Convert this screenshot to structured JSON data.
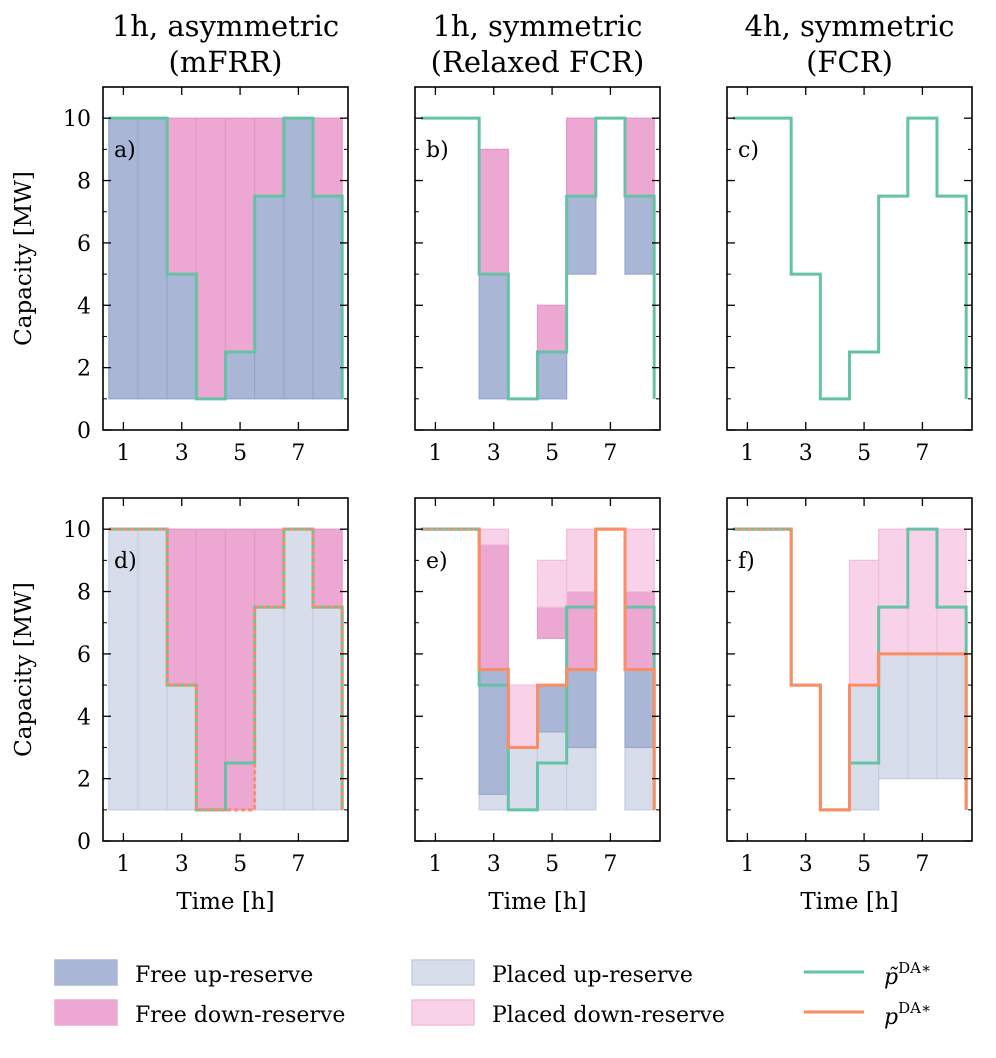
{
  "colors": {
    "free_up": "#a9b6d6",
    "free_down": "#eca8d2",
    "placed_up": "#d8ddec",
    "placed_down": "#f8d2e8",
    "ptilde": "#66c2a5",
    "p": "#fc8d62"
  },
  "legend": {
    "free_up": "Free up-reserve",
    "free_down": "Free down-reserve",
    "placed_up": "Placed up-reserve",
    "placed_down": "Placed down-reserve",
    "ptilde_base": "p̃",
    "p_base": "p",
    "sup": "DA∗"
  },
  "chart_data": [
    {
      "id": "a",
      "type": "area",
      "title": [
        "1h, asymmetric",
        "(mFRR)"
      ],
      "panel_label": "a)",
      "xlabel": "",
      "ylabel": "Capacity [MW]",
      "xlim": [
        0.3,
        8.7
      ],
      "ylim": [
        0,
        11
      ],
      "xticks": [
        1,
        3,
        5,
        7
      ],
      "yticks": [
        0,
        2,
        4,
        6,
        8,
        10
      ],
      "hours": [
        1,
        2,
        3,
        4,
        5,
        6,
        7,
        8
      ],
      "layers": [
        {
          "kind": "free_up",
          "low": [
            1,
            1,
            1,
            1,
            1,
            1,
            1,
            1
          ],
          "high": [
            10,
            10,
            5,
            1,
            2.5,
            7.5,
            10,
            7.5
          ]
        },
        {
          "kind": "free_down",
          "low": [
            10,
            10,
            5,
            1,
            2.5,
            7.5,
            10,
            7.5
          ],
          "high": [
            10,
            10,
            10,
            10,
            10,
            10,
            10,
            10
          ]
        }
      ],
      "ptilde": [
        10,
        10,
        5,
        1,
        2.5,
        7.5,
        10,
        7.5
      ],
      "p": null,
      "ptilde_end": 1,
      "p_end": null
    },
    {
      "id": "b",
      "type": "area",
      "title": [
        "1h, symmetric",
        "(Relaxed FCR)"
      ],
      "panel_label": "b)",
      "xlabel": "",
      "ylabel": "",
      "xlim": [
        0.3,
        8.7
      ],
      "ylim": [
        0,
        11
      ],
      "xticks": [
        1,
        3,
        5,
        7
      ],
      "yticks": [
        0,
        2,
        4,
        6,
        8,
        10
      ],
      "hours": [
        1,
        2,
        3,
        4,
        5,
        6,
        7,
        8
      ],
      "layers": [
        {
          "kind": "free_up",
          "low": [
            null,
            null,
            1,
            null,
            1,
            5,
            null,
            5
          ],
          "high": [
            null,
            null,
            5,
            null,
            2.5,
            7.5,
            null,
            7.5
          ]
        },
        {
          "kind": "free_down",
          "low": [
            null,
            null,
            5,
            null,
            2.5,
            7.5,
            null,
            7.5
          ],
          "high": [
            null,
            null,
            9,
            null,
            4,
            10,
            null,
            10
          ]
        }
      ],
      "ptilde": [
        10,
        10,
        5,
        1,
        2.5,
        7.5,
        10,
        7.5
      ],
      "p": null,
      "ptilde_end": 1,
      "p_end": null
    },
    {
      "id": "c",
      "type": "area",
      "title": [
        "4h, symmetric",
        "(FCR)"
      ],
      "panel_label": "c)",
      "xlabel": "",
      "ylabel": "",
      "xlim": [
        0.3,
        8.7
      ],
      "ylim": [
        0,
        11
      ],
      "xticks": [
        1,
        3,
        5,
        7
      ],
      "yticks": [
        0,
        2,
        4,
        6,
        8,
        10
      ],
      "hours": [
        1,
        2,
        3,
        4,
        5,
        6,
        7,
        8
      ],
      "layers": [],
      "ptilde": [
        10,
        10,
        5,
        1,
        2.5,
        7.5,
        10,
        7.5
      ],
      "p": null,
      "ptilde_end": 1,
      "p_end": null
    },
    {
      "id": "d",
      "type": "area",
      "title": null,
      "panel_label": "d)",
      "xlabel": "Time [h]",
      "ylabel": "Capacity [MW]",
      "xlim": [
        0.3,
        8.7
      ],
      "ylim": [
        0,
        11
      ],
      "xticks": [
        1,
        3,
        5,
        7
      ],
      "yticks": [
        0,
        2,
        4,
        6,
        8,
        10
      ],
      "hours": [
        1,
        2,
        3,
        4,
        5,
        6,
        7,
        8
      ],
      "layers": [
        {
          "kind": "placed_up",
          "low": [
            1,
            1,
            1,
            1,
            1,
            1,
            1,
            1
          ],
          "high": [
            10,
            10,
            5,
            1,
            1,
            7.5,
            10,
            7.5
          ]
        },
        {
          "kind": "free_down",
          "low": [
            10,
            10,
            5,
            1,
            1,
            7.5,
            10,
            7.5
          ],
          "high": [
            10,
            10,
            10,
            10,
            10,
            10,
            10,
            10
          ]
        }
      ],
      "ptilde": [
        10,
        10,
        5,
        1,
        2.5,
        7.5,
        10,
        7.5
      ],
      "p": [
        10,
        10,
        5,
        1,
        1,
        7.5,
        10,
        7.5
      ],
      "ptilde_end": 1,
      "p_end": 1
    },
    {
      "id": "e",
      "type": "area",
      "title": null,
      "panel_label": "e)",
      "xlabel": "Time [h]",
      "ylabel": "",
      "xlim": [
        0.3,
        8.7
      ],
      "ylim": [
        0,
        11
      ],
      "xticks": [
        1,
        3,
        5,
        7
      ],
      "yticks": [
        0,
        2,
        4,
        6,
        8,
        10
      ],
      "hours": [
        1,
        2,
        3,
        4,
        5,
        6,
        7,
        8
      ],
      "layers": [
        {
          "kind": "placed_up",
          "low": [
            null,
            null,
            1,
            1,
            1,
            1,
            null,
            1
          ],
          "high": [
            null,
            null,
            1.5,
            3,
            3.5,
            3,
            null,
            3
          ]
        },
        {
          "kind": "free_up",
          "low": [
            null,
            null,
            1.5,
            null,
            3.5,
            3,
            null,
            3
          ],
          "high": [
            null,
            null,
            5.5,
            null,
            5,
            5.5,
            null,
            5.5
          ]
        },
        {
          "kind": "free_down",
          "low": [
            null,
            null,
            5.5,
            null,
            6.5,
            5.5,
            null,
            5.5
          ],
          "high": [
            null,
            null,
            9.5,
            null,
            7.5,
            8,
            null,
            8
          ]
        },
        {
          "kind": "placed_down",
          "low": [
            null,
            null,
            9.5,
            3,
            7.5,
            8,
            null,
            8
          ],
          "high": [
            null,
            null,
            10,
            5,
            9,
            10,
            null,
            10
          ]
        }
      ],
      "ptilde": [
        10,
        10,
        5,
        1,
        2.5,
        7.5,
        10,
        7.5
      ],
      "p": [
        10,
        10,
        5.5,
        3,
        5,
        5.5,
        10,
        5.5
      ],
      "ptilde_end": 1,
      "p_end": 1
    },
    {
      "id": "f",
      "type": "area",
      "title": null,
      "panel_label": "f)",
      "xlabel": "Time [h]",
      "ylabel": "",
      "xlim": [
        0.3,
        8.7
      ],
      "ylim": [
        0,
        11
      ],
      "xticks": [
        1,
        3,
        5,
        7
      ],
      "yticks": [
        0,
        2,
        4,
        6,
        8,
        10
      ],
      "hours": [
        1,
        2,
        3,
        4,
        5,
        6,
        7,
        8
      ],
      "layers": [
        {
          "kind": "placed_up",
          "low": [
            null,
            null,
            null,
            null,
            1,
            2,
            2,
            2
          ],
          "high": [
            null,
            null,
            null,
            null,
            5,
            6,
            6,
            6
          ]
        },
        {
          "kind": "placed_down",
          "low": [
            null,
            null,
            null,
            null,
            5,
            6,
            6,
            6
          ],
          "high": [
            null,
            null,
            null,
            null,
            9,
            10,
            10,
            10
          ]
        }
      ],
      "ptilde": [
        10,
        10,
        5,
        1,
        2.5,
        7.5,
        10,
        7.5
      ],
      "p": [
        10,
        10,
        5,
        1,
        5,
        6,
        6,
        6
      ],
      "ptilde_end": 1,
      "p_end": 1
    }
  ]
}
